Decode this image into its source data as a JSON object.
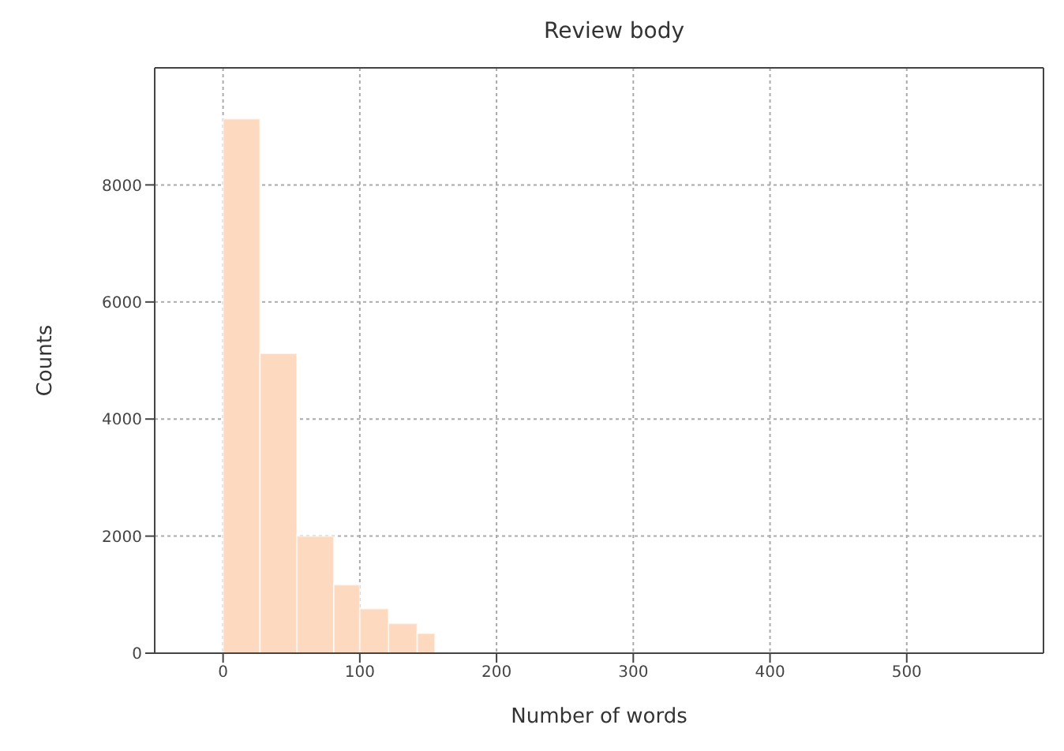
{
  "chart_data": {
    "type": "histogram",
    "title": "Review body",
    "xlabel": "Number of words",
    "ylabel": "Counts",
    "bins": [
      0,
      27,
      54,
      81,
      100,
      121,
      142,
      155
    ],
    "values": [
      9130,
      5120,
      2000,
      1170,
      760,
      510,
      340
    ],
    "color": "#fdd9c0",
    "xlim": [
      -50,
      600
    ],
    "xticks": [
      0,
      100,
      200,
      300,
      400,
      500
    ],
    "ylim": [
      0,
      10000
    ],
    "yticks": [
      0,
      2000,
      4000,
      6000,
      8000
    ],
    "grid": true
  }
}
